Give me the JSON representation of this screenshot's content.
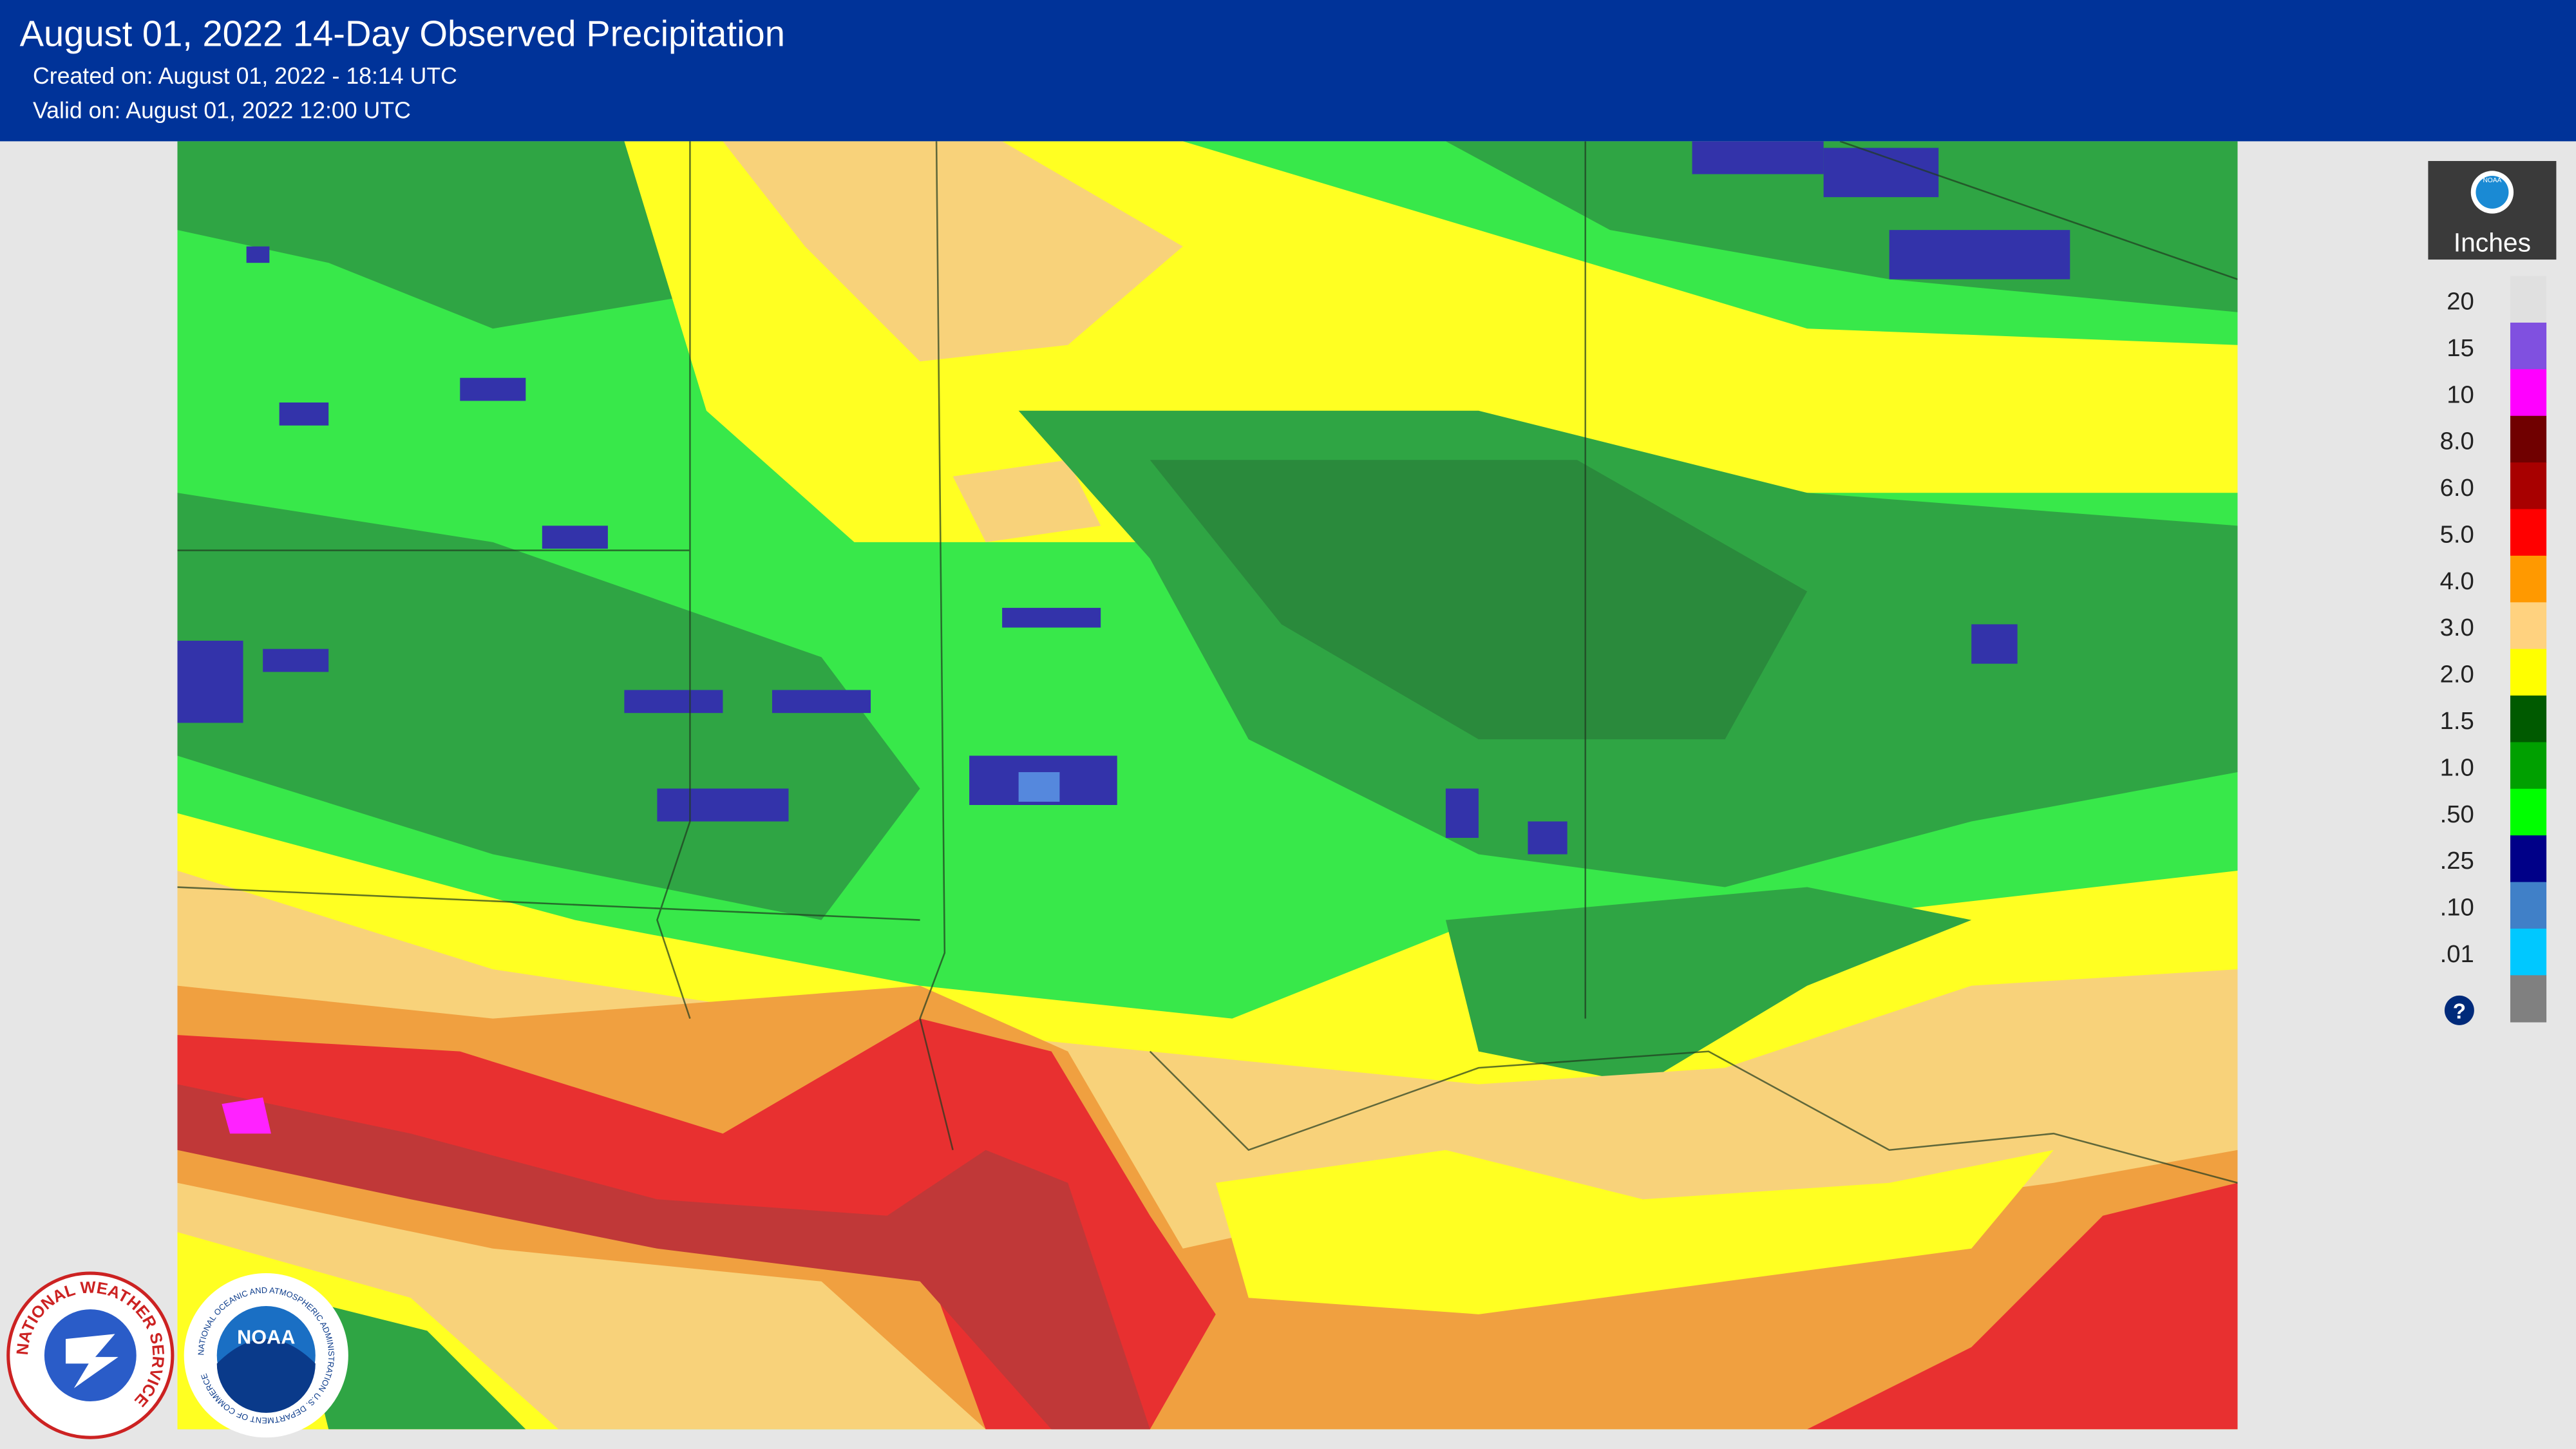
{
  "header": {
    "title": "August 01, 2022 14-Day Observed Precipitation",
    "created": "Created on: August 01, 2022 - 18:14 UTC",
    "valid": "Valid on: August 01, 2022 12:00 UTC"
  },
  "legend": {
    "unit": "Inches",
    "help": "?",
    "labels": [
      "20",
      "15",
      "10",
      "8.0",
      "6.0",
      "5.0",
      "4.0",
      "3.0",
      "2.0",
      "1.5",
      "1.0",
      ".50",
      ".25",
      ".10",
      ".01"
    ],
    "colors": [
      "#e0e0e0",
      "#8050e0",
      "#ff00ff",
      "#700000",
      "#a80000",
      "#ff0000",
      "#ff9900",
      "#ffd27f",
      "#ffff00",
      "#005a00",
      "#00a000",
      "#00ff00",
      "#000088",
      "#4080c8",
      "#00c8ff",
      "#808080"
    ]
  },
  "logos": {
    "nws": "NATIONAL WEATHER SERVICE",
    "noaa": "NOAA",
    "noaa_ring": "NATIONAL OCEANIC AND ATMOSPHERIC ADMINISTRATION",
    "doc": "U.S. DEPARTMENT OF COMMERCE"
  }
}
